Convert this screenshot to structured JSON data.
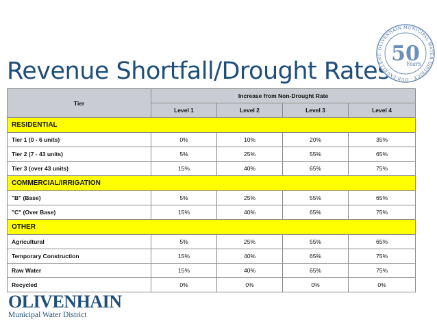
{
  "title": "Revenue Shortfall/Drought Rates",
  "seal": {
    "years": "Years",
    "text": "OLIVENHAIN MUNICIPAL WATER DISTRICT · OUR EXCELLENCE 1959 - 2009",
    "big": "50"
  },
  "table": {
    "tier_header": "Tier",
    "group_header": "Increase from Non-Drought Rate",
    "levels": [
      "Level 1",
      "Level 2",
      "Level 3",
      "Level 4"
    ],
    "sections": [
      {
        "name": "RESIDENTIAL",
        "rows": [
          {
            "label": "Tier 1  (0 - 6 units)",
            "values": [
              "0%",
              "10%",
              "20%",
              "35%"
            ]
          },
          {
            "label": "Tier 2  (7 - 43 units)",
            "values": [
              "5%",
              "25%",
              "55%",
              "65%"
            ]
          },
          {
            "label": "Tier 3  (over 43 units)",
            "values": [
              "15%",
              "40%",
              "65%",
              "75%"
            ]
          }
        ]
      },
      {
        "name": "COMMERCIAL/IRRIGATION",
        "rows": [
          {
            "label": "\"B\" (Base)",
            "values": [
              "5%",
              "25%",
              "55%",
              "65%"
            ]
          },
          {
            "label": "\"C\" (Over Base)",
            "values": [
              "15%",
              "40%",
              "65%",
              "75%"
            ]
          }
        ]
      },
      {
        "name": "OTHER",
        "rows": [
          {
            "label": "Agricultural",
            "values": [
              "5%",
              "25%",
              "55%",
              "65%"
            ]
          },
          {
            "label": "Temporary Construction",
            "values": [
              "15%",
              "40%",
              "65%",
              "75%"
            ]
          },
          {
            "label": "Raw Water",
            "values": [
              "15%",
              "40%",
              "65%",
              "75%"
            ]
          },
          {
            "label": "Recycled",
            "values": [
              "0%",
              "0%",
              "0%",
              "0%"
            ]
          }
        ]
      }
    ]
  },
  "logo": {
    "name": "OLIVENHAIN",
    "sub": "Municipal Water District"
  },
  "colors": {
    "title": "#1f4e79",
    "section_fill": "#ffff00",
    "header_fill": "#c9ccd3"
  }
}
